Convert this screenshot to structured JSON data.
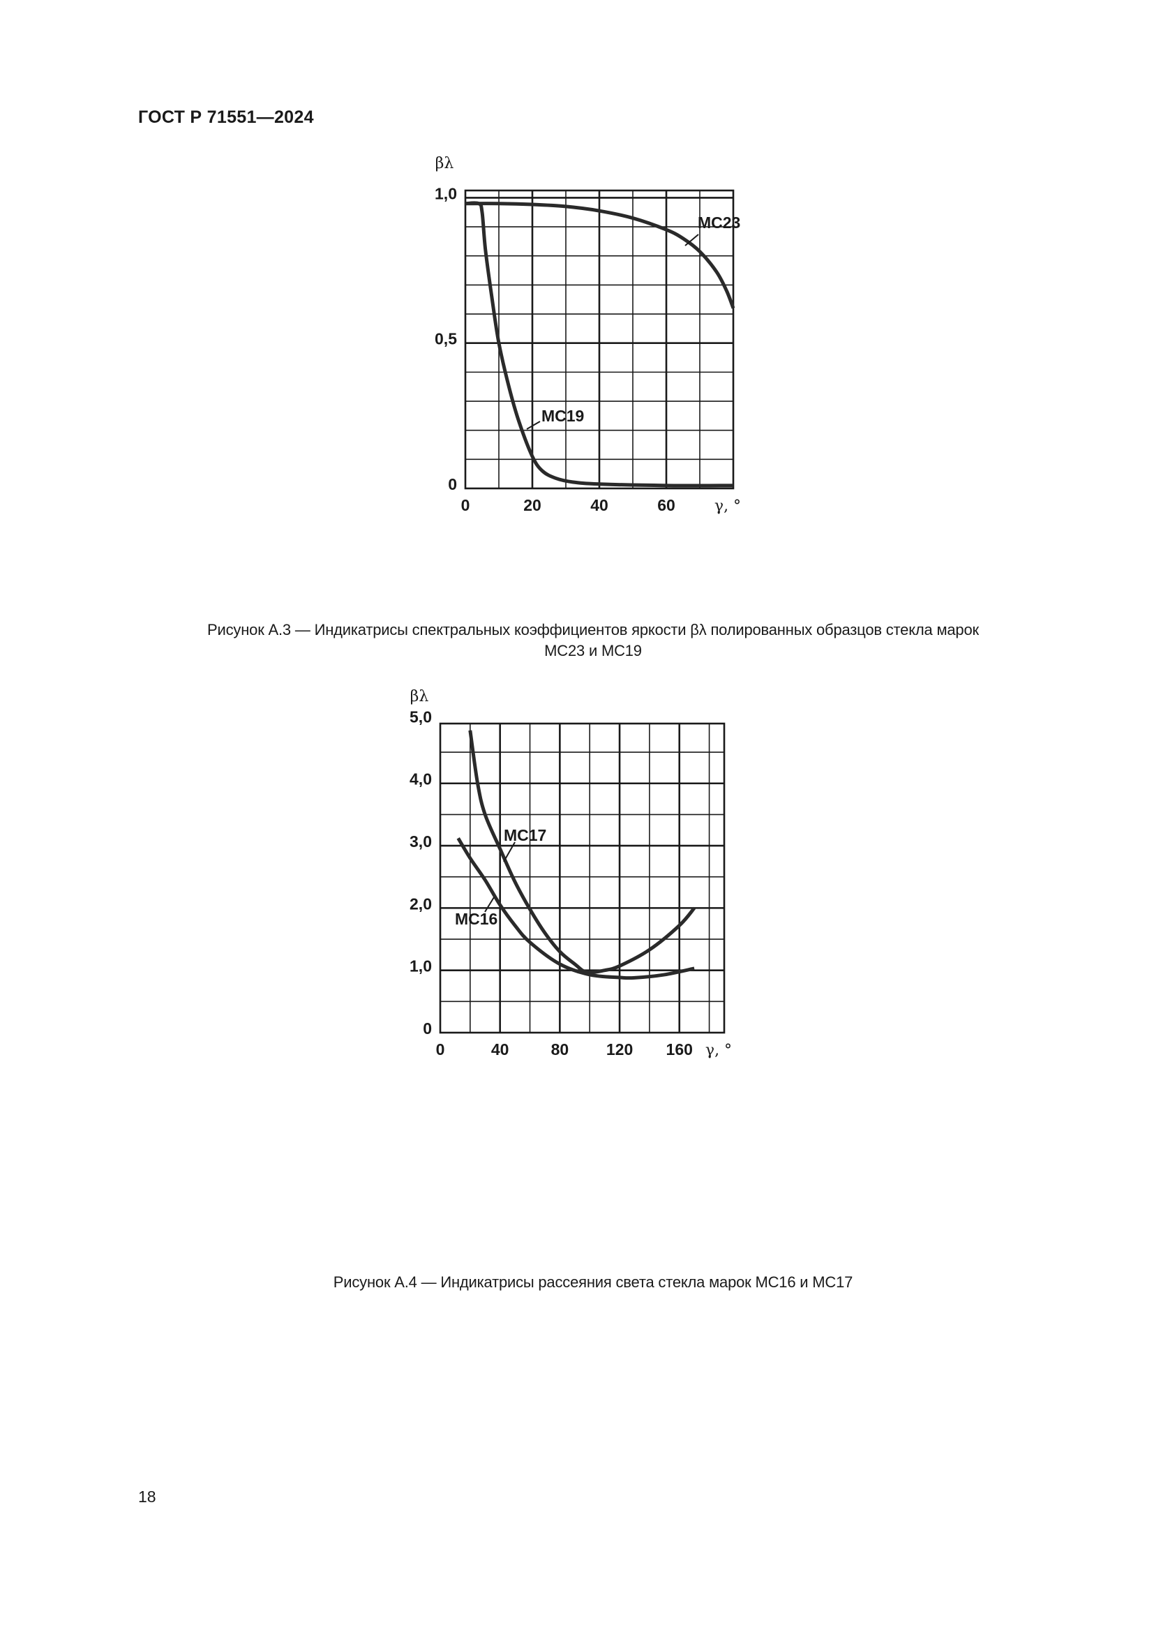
{
  "header": {
    "doc_id": "ГОСТ Р 71551—2024"
  },
  "page_number": "18",
  "captions": {
    "figure_a3_line1": "Рисунок А.3 — Индикатрисы спектральных коэффициентов яркости βλ полированных образцов стекла марок",
    "figure_a3_line2": "МС23 и МС19",
    "figure_a4": "Рисунок А.4 — Индикатрисы рассеяния света стекла марок МС16 и МС17"
  },
  "chart_data": [
    {
      "type": "line",
      "ylabel": "βλ",
      "xlabel": "γ, °",
      "xlim": [
        0,
        80
      ],
      "ylim": [
        0,
        1.0
      ],
      "grid": true,
      "x_ticks": [
        "0",
        "20",
        "40",
        "60"
      ],
      "x_tick_values": [
        0,
        20,
        40,
        60
      ],
      "y_ticks": [
        "0",
        "0,5",
        "1,0"
      ],
      "y_tick_values": [
        0,
        0.5,
        1.0
      ],
      "series": [
        {
          "name": "МС23",
          "points": [
            [
              0,
              0.98
            ],
            [
              10,
              0.98
            ],
            [
              20,
              0.977
            ],
            [
              30,
              0.97
            ],
            [
              40,
              0.955
            ],
            [
              50,
              0.93
            ],
            [
              60,
              0.89
            ],
            [
              65,
              0.86
            ],
            [
              70,
              0.815
            ],
            [
              75,
              0.745
            ],
            [
              78,
              0.68
            ],
            [
              80,
              0.62
            ]
          ]
        },
        {
          "name": "МС19",
          "points": [
            [
              0,
              0.98
            ],
            [
              4,
              0.98
            ],
            [
              5,
              0.95
            ],
            [
              6,
              0.82
            ],
            [
              8,
              0.65
            ],
            [
              10,
              0.5
            ],
            [
              13,
              0.35
            ],
            [
              16,
              0.23
            ],
            [
              20,
              0.11
            ],
            [
              23,
              0.06
            ],
            [
              27,
              0.035
            ],
            [
              32,
              0.022
            ],
            [
              40,
              0.015
            ],
            [
              60,
              0.01
            ],
            [
              80,
              0.01
            ]
          ]
        }
      ]
    },
    {
      "type": "line",
      "ylabel": "βλ",
      "xlabel": "γ, °",
      "xlim": [
        0,
        190
      ],
      "ylim": [
        0,
        5.0
      ],
      "grid": true,
      "x_ticks": [
        "0",
        "40",
        "80",
        "120",
        "160"
      ],
      "x_tick_values": [
        0,
        40,
        80,
        120,
        160
      ],
      "y_ticks": [
        "0",
        "1,0",
        "2,0",
        "3,0",
        "4,0",
        "5,0"
      ],
      "y_tick_values": [
        0,
        1,
        2,
        3,
        4,
        5
      ],
      "series": [
        {
          "name": "МС17",
          "points": [
            [
              20,
              4.85
            ],
            [
              25,
              4.0
            ],
            [
              30,
              3.5
            ],
            [
              40,
              2.95
            ],
            [
              50,
              2.42
            ],
            [
              60,
              1.98
            ],
            [
              70,
              1.6
            ],
            [
              80,
              1.3
            ],
            [
              90,
              1.1
            ],
            [
              98,
              0.97
            ],
            [
              110,
              1.0
            ],
            [
              120,
              1.07
            ],
            [
              140,
              1.33
            ],
            [
              160,
              1.72
            ],
            [
              170,
              2.0
            ]
          ]
        },
        {
          "name": "МС16",
          "points": [
            [
              12,
              3.12
            ],
            [
              20,
              2.8
            ],
            [
              30,
              2.45
            ],
            [
              40,
              2.05
            ],
            [
              50,
              1.72
            ],
            [
              60,
              1.45
            ],
            [
              80,
              1.1
            ],
            [
              100,
              0.93
            ],
            [
              120,
              0.885
            ],
            [
              130,
              0.88
            ],
            [
              150,
              0.93
            ],
            [
              170,
              1.03
            ]
          ]
        }
      ]
    }
  ]
}
